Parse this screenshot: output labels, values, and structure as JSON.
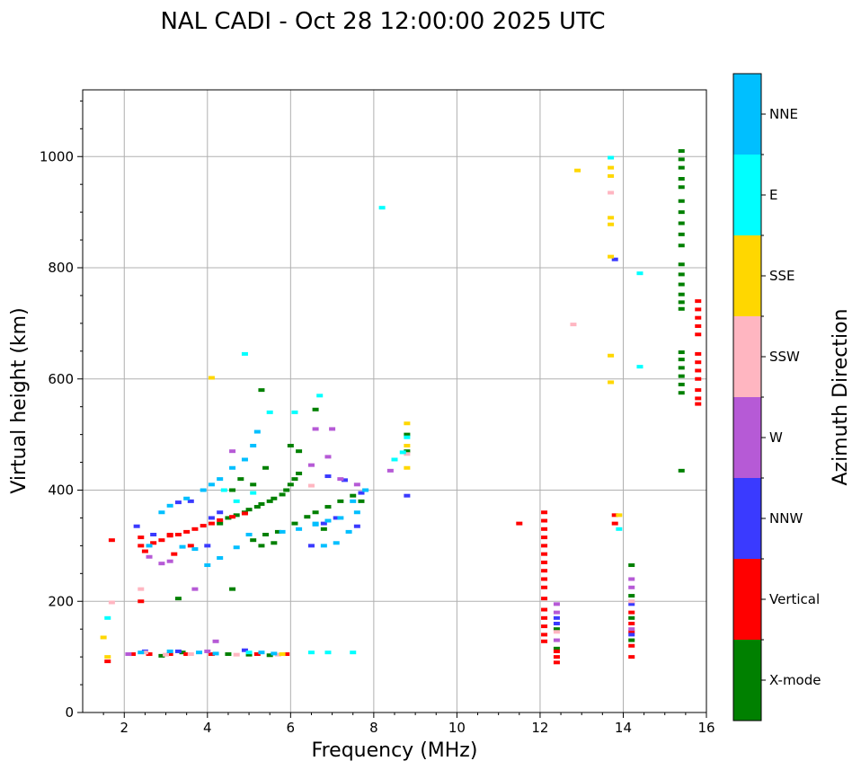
{
  "chart_data": {
    "type": "scatter",
    "title": "NAL CADI - Oct 28 12:00:00 2025 UTC",
    "xlabel": "Frequency (MHz)",
    "ylabel": "Virtual height (km)",
    "xlim": [
      1,
      16
    ],
    "ylim": [
      0,
      1120
    ],
    "xticks": [
      2,
      4,
      6,
      8,
      10,
      12,
      14,
      16
    ],
    "yticks": [
      0,
      200,
      400,
      600,
      800,
      1000
    ],
    "grid": true,
    "colorbar": {
      "label": "Azimuth Direction",
      "categories": [
        {
          "name": "X-mode",
          "color": "#008000"
        },
        {
          "name": "Vertical",
          "color": "#ff0000"
        },
        {
          "name": "NNW",
          "color": "#3a3aff"
        },
        {
          "name": "W",
          "color": "#b65ad6"
        },
        {
          "name": "SSW",
          "color": "#ffb6c1"
        },
        {
          "name": "SSE",
          "color": "#ffd700"
        },
        {
          "name": "E",
          "color": "#00ffff"
        },
        {
          "name": "NNE",
          "color": "#00bfff"
        }
      ]
    },
    "series": [
      {
        "name": "X-mode",
        "points": [
          [
            3.3,
            205
          ],
          [
            4.6,
            222
          ],
          [
            4.3,
            340
          ],
          [
            4.5,
            350
          ],
          [
            4.7,
            355
          ],
          [
            4.9,
            360
          ],
          [
            5.0,
            365
          ],
          [
            5.2,
            370
          ],
          [
            5.3,
            375
          ],
          [
            5.5,
            380
          ],
          [
            5.6,
            385
          ],
          [
            5.8,
            392
          ],
          [
            5.9,
            400
          ],
          [
            6.0,
            410
          ],
          [
            6.1,
            420
          ],
          [
            6.2,
            430
          ],
          [
            5.1,
            310
          ],
          [
            5.4,
            320
          ],
          [
            5.7,
            325
          ],
          [
            6.1,
            340
          ],
          [
            6.4,
            352
          ],
          [
            6.6,
            360
          ],
          [
            6.9,
            370
          ],
          [
            7.2,
            380
          ],
          [
            7.5,
            390
          ],
          [
            5.3,
            300
          ],
          [
            5.6,
            305
          ],
          [
            6.6,
            545
          ],
          [
            6.0,
            480
          ],
          [
            6.2,
            470
          ],
          [
            5.1,
            410
          ],
          [
            5.4,
            440
          ],
          [
            4.6,
            400
          ],
          [
            4.8,
            420
          ],
          [
            8.8,
            470
          ],
          [
            8.8,
            500
          ],
          [
            7.7,
            380
          ],
          [
            6.8,
            330
          ],
          [
            5.3,
            580
          ],
          [
            2.9,
            102
          ],
          [
            3.4,
            108
          ],
          [
            4.5,
            105
          ],
          [
            5.0,
            104
          ],
          [
            5.5,
            103
          ],
          [
            15.4,
            1010
          ],
          [
            15.4,
            995
          ],
          [
            15.4,
            980
          ],
          [
            15.4,
            960
          ],
          [
            15.4,
            945
          ],
          [
            15.4,
            920
          ],
          [
            15.4,
            900
          ],
          [
            15.4,
            880
          ],
          [
            15.4,
            860
          ],
          [
            15.4,
            840
          ],
          [
            15.4,
            806
          ],
          [
            15.4,
            788
          ],
          [
            15.4,
            770
          ],
          [
            15.4,
            752
          ],
          [
            15.4,
            738
          ],
          [
            15.4,
            726
          ],
          [
            15.4,
            648
          ],
          [
            15.4,
            635
          ],
          [
            15.4,
            620
          ],
          [
            15.4,
            605
          ],
          [
            15.4,
            590
          ],
          [
            15.4,
            575
          ],
          [
            15.4,
            435
          ],
          [
            14.2,
            265
          ],
          [
            12.4,
            115
          ],
          [
            14.2,
            130
          ],
          [
            12.4,
            150
          ],
          [
            14.2,
            170
          ],
          [
            14.2,
            210
          ]
        ]
      },
      {
        "name": "Vertical",
        "points": [
          [
            1.7,
            310
          ],
          [
            2.4,
            315
          ],
          [
            2.4,
            300
          ],
          [
            2.7,
            305
          ],
          [
            2.9,
            310
          ],
          [
            3.1,
            318
          ],
          [
            3.3,
            320
          ],
          [
            3.5,
            325
          ],
          [
            3.7,
            330
          ],
          [
            3.9,
            336
          ],
          [
            4.1,
            340
          ],
          [
            4.3,
            346
          ],
          [
            4.6,
            352
          ],
          [
            4.9,
            358
          ],
          [
            2.5,
            290
          ],
          [
            3.2,
            285
          ],
          [
            3.6,
            300
          ],
          [
            2.4,
            200
          ],
          [
            3.1,
            320
          ],
          [
            2.2,
            105
          ],
          [
            2.6,
            105
          ],
          [
            3.1,
            105
          ],
          [
            3.5,
            105
          ],
          [
            4.1,
            105
          ],
          [
            5.2,
            105
          ],
          [
            5.9,
            105
          ],
          [
            1.6,
            92
          ],
          [
            11.5,
            340
          ],
          [
            12.1,
            360
          ],
          [
            12.1,
            345
          ],
          [
            12.1,
            330
          ],
          [
            12.1,
            315
          ],
          [
            12.1,
            300
          ],
          [
            12.1,
            285
          ],
          [
            12.1,
            270
          ],
          [
            12.1,
            255
          ],
          [
            12.1,
            240
          ],
          [
            12.1,
            225
          ],
          [
            12.1,
            205
          ],
          [
            12.1,
            185
          ],
          [
            12.1,
            170
          ],
          [
            12.1,
            155
          ],
          [
            12.1,
            140
          ],
          [
            12.1,
            128
          ],
          [
            12.4,
            90
          ],
          [
            12.4,
            100
          ],
          [
            12.4,
            110
          ],
          [
            13.8,
            355
          ],
          [
            13.8,
            340
          ],
          [
            14.2,
            100
          ],
          [
            14.2,
            120
          ],
          [
            14.2,
            145
          ],
          [
            14.2,
            160
          ],
          [
            14.2,
            180
          ],
          [
            15.8,
            740
          ],
          [
            15.8,
            725
          ],
          [
            15.8,
            710
          ],
          [
            15.8,
            695
          ],
          [
            15.8,
            680
          ],
          [
            15.8,
            645
          ],
          [
            15.8,
            630
          ],
          [
            15.8,
            615
          ],
          [
            15.8,
            600
          ],
          [
            15.8,
            580
          ],
          [
            15.8,
            565
          ],
          [
            15.8,
            555
          ]
        ]
      },
      {
        "name": "NNW",
        "points": [
          [
            2.3,
            335
          ],
          [
            2.7,
            320
          ],
          [
            3.3,
            378
          ],
          [
            3.6,
            380
          ],
          [
            4.1,
            350
          ],
          [
            4.0,
            300
          ],
          [
            4.3,
            360
          ],
          [
            6.5,
            300
          ],
          [
            6.8,
            340
          ],
          [
            7.1,
            350
          ],
          [
            7.6,
            335
          ],
          [
            7.7,
            395
          ],
          [
            7.3,
            418
          ],
          [
            6.9,
            425
          ],
          [
            8.8,
            390
          ],
          [
            2.5,
            110
          ],
          [
            3.3,
            110
          ],
          [
            4.9,
            112
          ],
          [
            12.4,
            160
          ],
          [
            12.4,
            170
          ],
          [
            14.2,
            195
          ],
          [
            14.2,
            140
          ],
          [
            13.8,
            815
          ]
        ]
      },
      {
        "name": "W",
        "points": [
          [
            2.1,
            105
          ],
          [
            2.6,
            280
          ],
          [
            2.9,
            268
          ],
          [
            3.1,
            272
          ],
          [
            3.7,
            222
          ],
          [
            4.0,
            110
          ],
          [
            4.2,
            128
          ],
          [
            6.6,
            510
          ],
          [
            6.9,
            460
          ],
          [
            7.2,
            420
          ],
          [
            7.0,
            510
          ],
          [
            8.4,
            435
          ],
          [
            6.5,
            445
          ],
          [
            4.6,
            470
          ],
          [
            7.6,
            410
          ],
          [
            12.4,
            195
          ],
          [
            12.4,
            130
          ],
          [
            14.2,
            240
          ],
          [
            14.2,
            225
          ],
          [
            14.2,
            150
          ],
          [
            12.4,
            180
          ]
        ]
      },
      {
        "name": "SSW",
        "points": [
          [
            1.7,
            198
          ],
          [
            2.4,
            222
          ],
          [
            2.5,
            108
          ],
          [
            3.0,
            104
          ],
          [
            3.6,
            105
          ],
          [
            4.7,
            104
          ],
          [
            5.7,
            104
          ],
          [
            6.5,
            408
          ],
          [
            12.8,
            698
          ],
          [
            13.7,
            935
          ],
          [
            8.8,
            465
          ],
          [
            14.2,
            200
          ],
          [
            12.4,
            145
          ]
        ]
      },
      {
        "name": "SSE",
        "points": [
          [
            1.5,
            135
          ],
          [
            1.6,
            100
          ],
          [
            4.1,
            602
          ],
          [
            5.8,
            105
          ],
          [
            8.8,
            520
          ],
          [
            8.8,
            480
          ],
          [
            8.8,
            440
          ],
          [
            12.9,
            975
          ],
          [
            13.7,
            980
          ],
          [
            13.7,
            965
          ],
          [
            13.7,
            890
          ],
          [
            13.7,
            878
          ],
          [
            13.7,
            820
          ],
          [
            13.7,
            642
          ],
          [
            13.7,
            594
          ],
          [
            13.9,
            355
          ]
        ]
      },
      {
        "name": "E",
        "points": [
          [
            1.6,
            170
          ],
          [
            4.9,
            645
          ],
          [
            6.1,
            540
          ],
          [
            6.7,
            570
          ],
          [
            5.5,
            540
          ],
          [
            8.2,
            908
          ],
          [
            8.5,
            455
          ],
          [
            8.7,
            468
          ],
          [
            6.5,
            108
          ],
          [
            6.9,
            108
          ],
          [
            7.5,
            108
          ],
          [
            5.0,
            108
          ],
          [
            14.4,
            790
          ],
          [
            14.4,
            622
          ],
          [
            13.7,
            998
          ],
          [
            13.9,
            330
          ],
          [
            8.8,
            495
          ],
          [
            4.4,
            400
          ],
          [
            4.7,
            380
          ],
          [
            5.1,
            395
          ]
        ]
      },
      {
        "name": "NNE",
        "points": [
          [
            2.9,
            360
          ],
          [
            3.1,
            372
          ],
          [
            3.5,
            385
          ],
          [
            3.9,
            400
          ],
          [
            4.1,
            410
          ],
          [
            4.3,
            420
          ],
          [
            4.6,
            440
          ],
          [
            4.9,
            455
          ],
          [
            5.1,
            480
          ],
          [
            5.2,
            505
          ],
          [
            3.1,
            110
          ],
          [
            2.6,
            300
          ],
          [
            3.4,
            298
          ],
          [
            3.7,
            294
          ],
          [
            4.0,
            265
          ],
          [
            4.3,
            278
          ],
          [
            4.7,
            297
          ],
          [
            5.0,
            320
          ],
          [
            5.8,
            325
          ],
          [
            6.2,
            330
          ],
          [
            6.6,
            338
          ],
          [
            6.9,
            345
          ],
          [
            7.2,
            350
          ],
          [
            7.6,
            360
          ],
          [
            7.4,
            325
          ],
          [
            7.1,
            305
          ],
          [
            6.8,
            300
          ],
          [
            6.6,
            340
          ],
          [
            7.5,
            380
          ],
          [
            7.8,
            400
          ],
          [
            2.4,
            108
          ],
          [
            3.8,
            108
          ],
          [
            5.3,
            108
          ],
          [
            4.2,
            106
          ],
          [
            5.6,
            106
          ]
        ]
      }
    ]
  }
}
